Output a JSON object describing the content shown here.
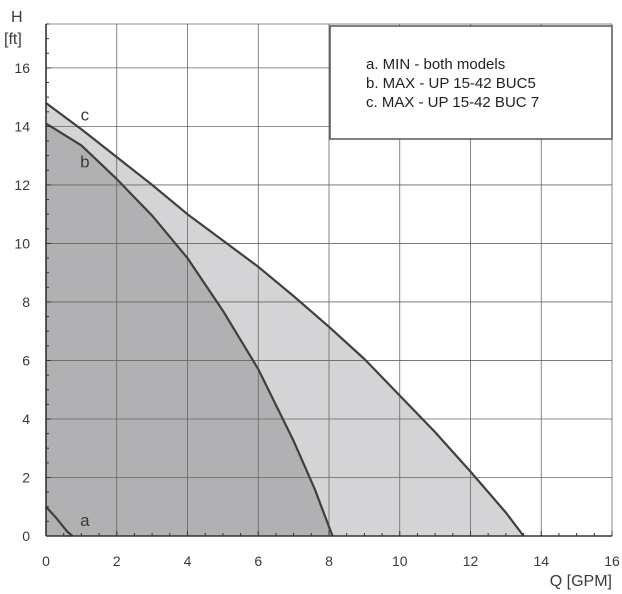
{
  "chart_data": {
    "type": "area",
    "title": "",
    "xlabel": "Q [GPM]",
    "ylabel_top": "H",
    "ylabel_unit": "[ft]",
    "xlim": [
      0,
      16
    ],
    "ylim": [
      0,
      17.5
    ],
    "x_ticks": [
      0,
      2,
      4,
      6,
      8,
      10,
      12,
      14,
      16
    ],
    "y_ticks": [
      0,
      2,
      4,
      6,
      8,
      10,
      12,
      14,
      16
    ],
    "grid": true,
    "legend": {
      "placement": "top-right",
      "entries": [
        "a. MIN - both models",
        "b. MAX - UP 15-42 BUC5",
        "c. MAX - UP 15-42 BUC 7"
      ]
    },
    "series": [
      {
        "name": "a",
        "fill": "none",
        "points": [
          [
            0,
            1.0
          ],
          [
            0.3,
            0.6
          ],
          [
            0.6,
            0.15
          ],
          [
            0.75,
            0
          ]
        ]
      },
      {
        "name": "b",
        "fill": "#b1b1b4",
        "points": [
          [
            0,
            14.1
          ],
          [
            1,
            13.35
          ],
          [
            2,
            12.2
          ],
          [
            3,
            10.95
          ],
          [
            4,
            9.5
          ],
          [
            5,
            7.7
          ],
          [
            6,
            5.7
          ],
          [
            7,
            3.25
          ],
          [
            7.6,
            1.6
          ],
          [
            8.1,
            0
          ]
        ]
      },
      {
        "name": "c",
        "fill": "#d4d4d6",
        "points": [
          [
            0,
            14.8
          ],
          [
            1,
            13.9
          ],
          [
            2,
            12.95
          ],
          [
            3,
            12.0
          ],
          [
            4,
            11.0
          ],
          [
            5,
            10.1
          ],
          [
            6,
            9.2
          ],
          [
            7,
            8.2
          ],
          [
            8,
            7.15
          ],
          [
            9,
            6.05
          ],
          [
            10,
            4.8
          ],
          [
            11,
            3.55
          ],
          [
            12,
            2.2
          ],
          [
            13,
            0.8
          ],
          [
            13.5,
            0
          ]
        ]
      }
    ],
    "curve_labels": [
      {
        "text": "a",
        "x": 1.1,
        "y": 0.35
      },
      {
        "text": "b",
        "x": 1.1,
        "y": 12.6
      },
      {
        "text": "c",
        "x": 1.1,
        "y": 14.2
      }
    ]
  }
}
